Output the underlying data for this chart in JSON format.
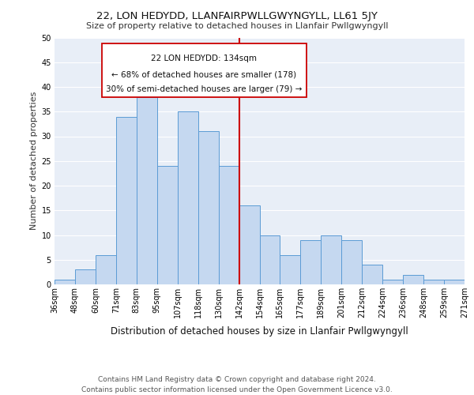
{
  "title": "22, LON HEDYDD, LLANFAIRPWLLGWYNGYLL, LL61 5JY",
  "subtitle": "Size of property relative to detached houses in Llanfair Pwllgwyngyll",
  "xlabel": "Distribution of detached houses by size in Llanfair Pwllgwyngyll",
  "ylabel": "Number of detached properties",
  "bar_values": [
    1,
    3,
    6,
    34,
    38,
    24,
    35,
    31,
    24,
    16,
    10,
    6,
    9,
    10,
    9,
    4,
    1,
    2,
    1,
    1
  ],
  "bin_labels": [
    "36sqm",
    "48sqm",
    "60sqm",
    "71sqm",
    "83sqm",
    "95sqm",
    "107sqm",
    "118sqm",
    "130sqm",
    "142sqm",
    "154sqm",
    "165sqm",
    "177sqm",
    "189sqm",
    "201sqm",
    "212sqm",
    "224sqm",
    "236sqm",
    "248sqm",
    "259sqm",
    "271sqm"
  ],
  "bar_color": "#c5d8f0",
  "bar_edge_color": "#5b9bd5",
  "background_color": "#e8eef7",
  "grid_color": "#ffffff",
  "annotation_line1": "22 LON HEDYDD: 134sqm",
  "annotation_line2": "← 68% of detached houses are smaller (178)",
  "annotation_line3": "30% of semi-detached houses are larger (79) →",
  "vline_x": 8.5,
  "vline_color": "#cc0000",
  "ylim": [
    0,
    50
  ],
  "yticks": [
    0,
    5,
    10,
    15,
    20,
    25,
    30,
    35,
    40,
    45,
    50
  ],
  "footer_text": "Contains HM Land Registry data © Crown copyright and database right 2024.\nContains public sector information licensed under the Open Government Licence v3.0.",
  "title_fontsize": 9.5,
  "subtitle_fontsize": 8.0,
  "ylabel_fontsize": 8.0,
  "xlabel_fontsize": 8.5,
  "tick_fontsize": 7.0,
  "annotation_fontsize": 7.5,
  "footer_fontsize": 6.5
}
